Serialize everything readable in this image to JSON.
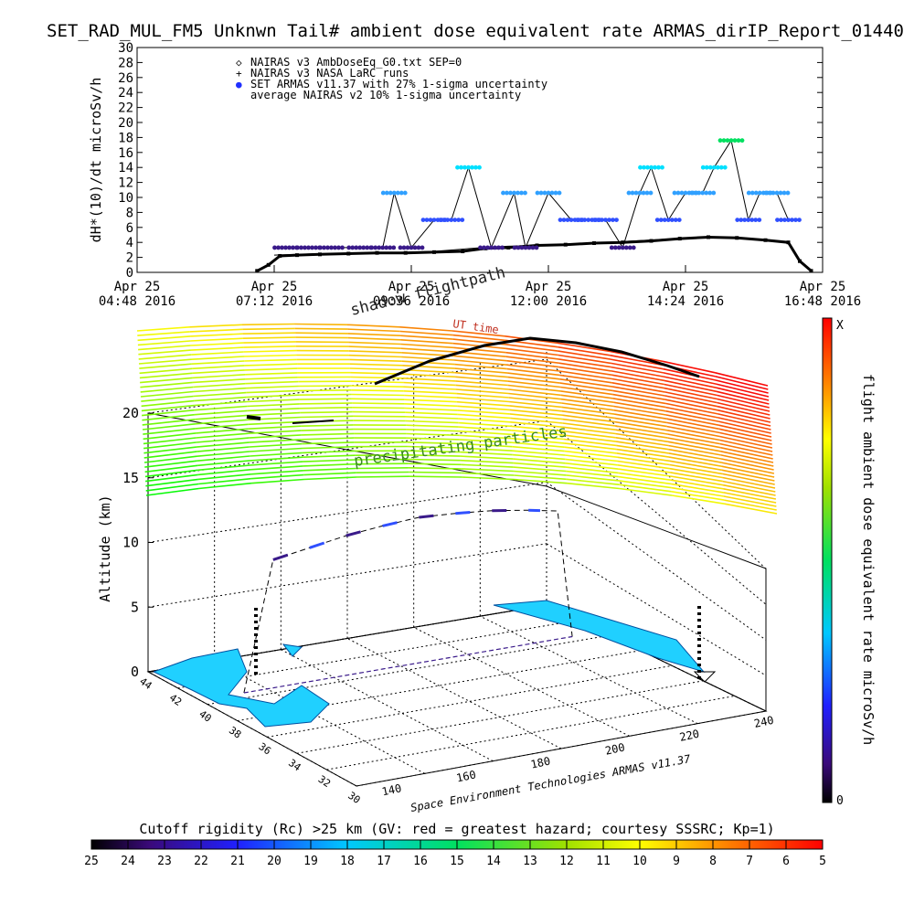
{
  "title": "SET_RAD_MUL_FM5 Unknwn Tail#  ambient dose equivalent rate ARMAS_dirIP_Report_01440",
  "top_chart": {
    "ylabel": "dH*(10)/dt microSv/h",
    "legend": [
      "NAIRAS v3 AmbDoseEq_G0.txt SEP=0",
      "NAIRAS v3 NASA LaRC runs",
      "SET ARMAS v11.37 with 27% 1-sigma uncertainty",
      "average NAIRAS v2 10% 1-sigma uncertainty"
    ],
    "x_tick_labels": [
      [
        "Apr 25",
        "04:48 2016"
      ],
      [
        "Apr 25",
        "07:12 2016"
      ],
      [
        "Apr 25",
        "09:36 2016"
      ],
      [
        "Apr 25",
        "12:00 2016"
      ],
      [
        "Apr 25",
        "14:24 2016"
      ],
      [
        "Apr 25",
        "16:48 2016"
      ]
    ],
    "y_ticks": [
      0,
      2,
      4,
      6,
      8,
      10,
      12,
      14,
      16,
      18,
      20,
      22,
      24,
      26,
      28,
      30
    ]
  },
  "chart_data": [
    {
      "type": "scatter",
      "title": "SET_RAD_MUL_FM5 Unknwn Tail#  ambient dose equivalent rate ARMAS_dirIP_Report_01440",
      "xlabel": "",
      "ylabel": "dH*(10)/dt microSv/h",
      "x_unit": "hours UT on Apr 25 2016",
      "xlim": [
        4.8,
        16.8
      ],
      "ylim": [
        0,
        30
      ],
      "grid": false,
      "legend_position": "top-left",
      "series": [
        {
          "name": "NAIRAS v3 AmbDoseEq_G0.txt SEP=0",
          "x": [
            6.9,
            7.1,
            7.3,
            7.6,
            8.0,
            8.5,
            9.0,
            9.5,
            10.0,
            10.5,
            10.9,
            11.3,
            11.8,
            12.3,
            12.8,
            13.3,
            13.8,
            14.3,
            14.8,
            15.3,
            15.8,
            16.2,
            16.4,
            16.6
          ],
          "y": [
            0.2,
            1.0,
            2.2,
            2.3,
            2.4,
            2.5,
            2.6,
            2.6,
            2.7,
            2.8,
            3.2,
            3.3,
            3.6,
            3.7,
            3.9,
            4.0,
            4.2,
            4.5,
            4.7,
            4.6,
            4.3,
            4.0,
            1.5,
            0.2
          ]
        },
        {
          "name": "SET ARMAS v11.37 with 27% 1-sigma uncertainty",
          "x": [
            7.4,
            7.8,
            8.2,
            8.7,
            9.1,
            9.3,
            9.6,
            10.0,
            10.3,
            10.6,
            11.0,
            11.4,
            11.6,
            12.0,
            12.4,
            12.7,
            13.0,
            13.3,
            13.6,
            13.8,
            14.1,
            14.4,
            14.7,
            14.9,
            15.2,
            15.5,
            15.7,
            16.0,
            16.2
          ],
          "y": [
            3.3,
            3.3,
            3.3,
            3.3,
            3.3,
            10.6,
            3.3,
            7.0,
            7.0,
            14.0,
            3.3,
            10.6,
            3.3,
            10.6,
            7.0,
            7.0,
            7.0,
            3.3,
            10.6,
            14.0,
            7.0,
            10.6,
            10.6,
            14.0,
            17.6,
            7.0,
            10.6,
            10.6,
            7.0
          ]
        },
        {
          "name": "average NAIRAS v2 10% 1-sigma uncertainty",
          "x": [
            7.2,
            8.0,
            9.0,
            10.0,
            11.0,
            12.0,
            13.0,
            14.0,
            15.0,
            16.0
          ],
          "y": [
            2.3,
            2.5,
            2.6,
            2.8,
            3.4,
            3.7,
            4.0,
            4.4,
            4.7,
            4.2
          ]
        }
      ]
    },
    {
      "type": "line",
      "title": "",
      "xlabel": "",
      "ylabel": "Altitude (km)",
      "zlim": [
        0,
        20
      ],
      "z_ticks": [
        0,
        5,
        10,
        15,
        20
      ],
      "lon_ticks": [
        140,
        160,
        180,
        200,
        220,
        240
      ],
      "lat_ticks": [
        30,
        32,
        34,
        36,
        38,
        40,
        42,
        44
      ],
      "series": [
        {
          "name": "",
          "lon": [
            142,
            150,
            160,
            170,
            180,
            190,
            200,
            210,
            220,
            228,
            232
          ],
          "alt": [
            0,
            11,
            11.5,
            12,
            12.3,
            12.5,
            12.3,
            12,
            11.5,
            11,
            0
          ]
        }
      ]
    }
  ],
  "annotations": {
    "shadow": "shadow flightpath",
    "ut_time": "UT time",
    "precipitating": "precipitating particles",
    "altitude_label": "Altitude (km)",
    "credit": "Space Environment Technologies ARMAS v11.37"
  },
  "right_colorbar": {
    "label": "flight ambient dose equivalent rate microSv/h",
    "top": "X",
    "bottom": "0"
  },
  "bottom_colorbar": {
    "title": "Cutoff rigidity (Rc) >25 km (GV: red = greatest hazard; courtesy SSSRC; Kp=1)",
    "ticks": [
      "25",
      "24",
      "23",
      "22",
      "21",
      "20",
      "19",
      "18",
      "17",
      "16",
      "15",
      "14",
      "13",
      "12",
      "11",
      "10",
      "9",
      "8",
      "7",
      "6",
      "5"
    ]
  },
  "colors": {
    "armas_high": "#00e0ff",
    "armas_mid": "#3050ff",
    "armas_low": "#3a1a8a",
    "armas_peak": "#00e060",
    "nairas": "#000000",
    "land": "#20d0ff"
  }
}
